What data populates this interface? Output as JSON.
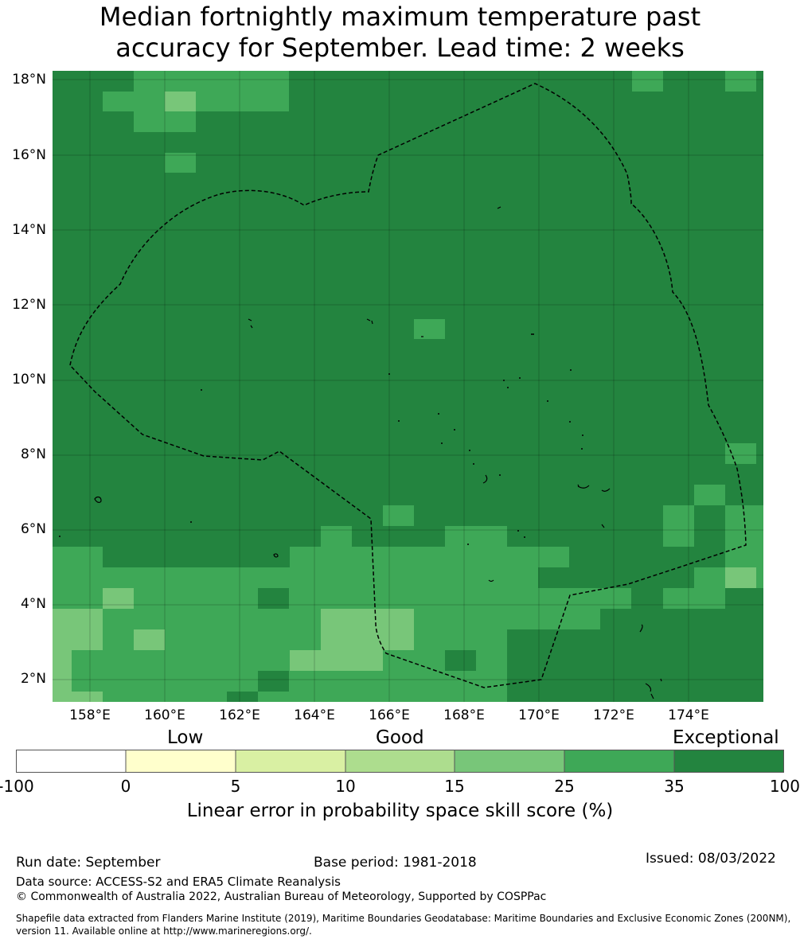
{
  "title_line1": "Median fortnightly maximum temperature past",
  "title_line2": "accuracy for September. Lead time: 2 weeks",
  "map": {
    "lat_labels": [
      "18°N",
      "16°N",
      "14°N",
      "12°N",
      "10°N",
      "8°N",
      "6°N",
      "4°N",
      "2°N"
    ],
    "lon_labels": [
      "158°E",
      "160°E",
      "162°E",
      "164°E",
      "166°E",
      "168°E",
      "170°E",
      "172°E",
      "174°E"
    ],
    "boundary": "dashed EEZ line",
    "colors": {
      "c35_100": "#23843f",
      "c25_35": "#3ea857",
      "c15_25": "#78c679",
      "c10_15": "#addd8e"
    }
  },
  "colorbar": {
    "categories": [
      "Low",
      "Good",
      "Exceptional"
    ],
    "ticks": [
      "-100",
      "0",
      "5",
      "10",
      "15",
      "25",
      "35",
      "100"
    ],
    "colors": [
      "#ffffff",
      "#ffffcc",
      "#d9f0a3",
      "#addd8e",
      "#78c679",
      "#3ea857",
      "#23843f"
    ],
    "label": "Linear error in probability space skill score (%)"
  },
  "footer": {
    "run_date": "Run date: September",
    "base_period": "Base period: 1981-2018",
    "issued": "Issued: 08/03/2022",
    "data_source": "Data source: ACCESS-S2 and ERA5 Climate Reanalysis",
    "copyright": "© Commonwealth of Australia 2022, Australian Bureau of Meteorology, Supported by COSPPac",
    "shapefile_line1": "Shapefile data extracted from Flanders Marine Institute (2019), Maritime Boundaries Geodatabase: Maritime Boundaries and Exclusive Economic Zones (200NM),",
    "shapefile_line2": "version 11. Available online at http://www.marineregions.org/."
  }
}
